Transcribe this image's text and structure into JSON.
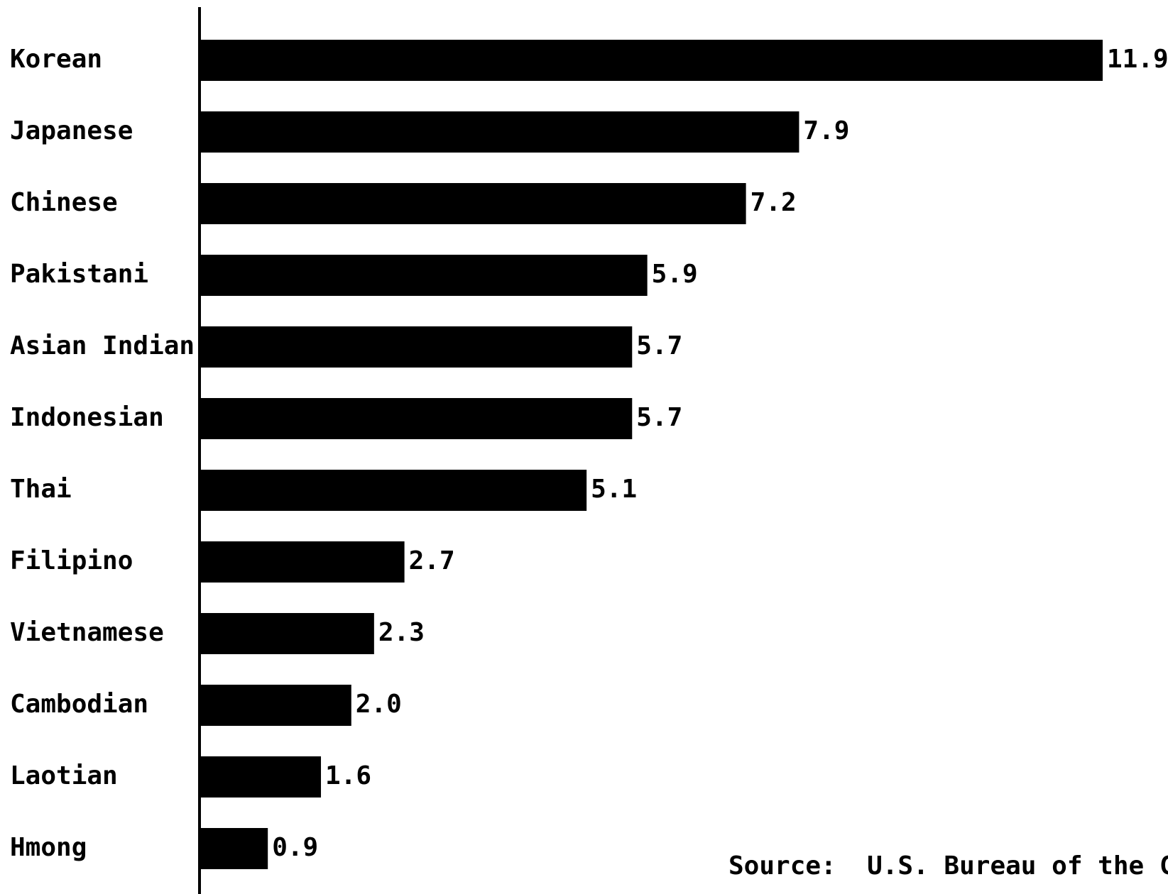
{
  "chart_data": {
    "type": "bar",
    "orientation": "horizontal",
    "categories": [
      "Korean",
      "Japanese",
      "Chinese",
      "Pakistani",
      "Asian Indian",
      "Indonesian",
      "Thai",
      "Filipino",
      "Vietnamese",
      "Cambodian",
      "Laotian",
      "Hmong"
    ],
    "values": [
      11.9,
      7.9,
      7.2,
      5.9,
      5.7,
      5.7,
      5.1,
      2.7,
      2.3,
      2.0,
      1.6,
      0.9
    ],
    "value_labels": [
      "11.9",
      "7.9",
      "7.2",
      "5.9",
      "5.7",
      "5.7",
      "5.1",
      "2.7",
      "2.3",
      "2.0",
      "1.6",
      "0.9"
    ],
    "title": "",
    "xlabel": "",
    "ylabel": "",
    "xlim": [
      0,
      11.9
    ],
    "grid": false,
    "legend": "none",
    "bar_color": "#000000",
    "annotation": "Source:  U.S. Bureau of the Census"
  }
}
